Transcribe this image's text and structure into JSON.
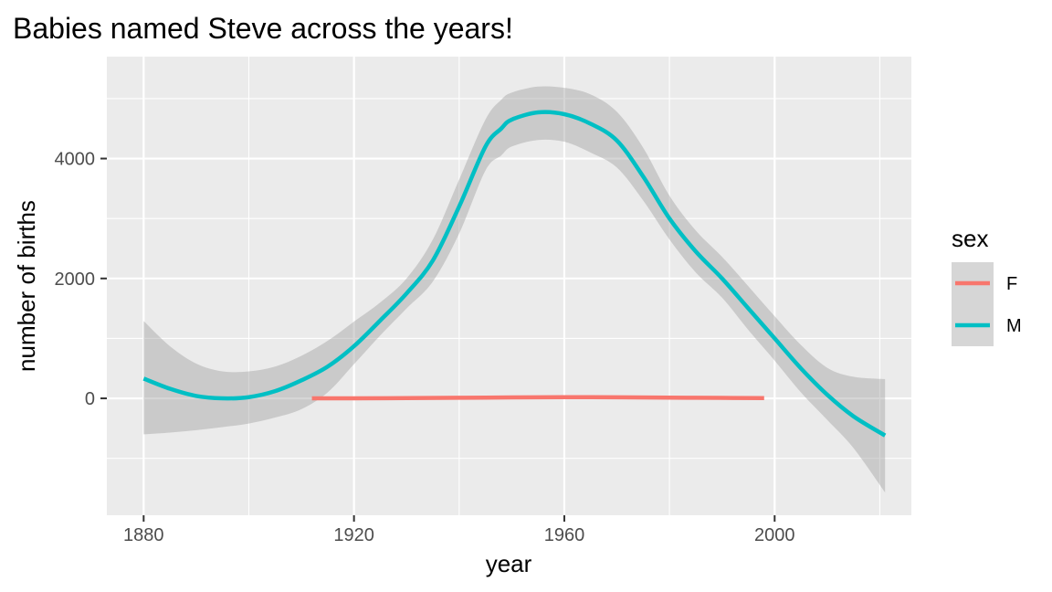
{
  "chart_data": {
    "type": "line",
    "title": "Babies named Steve across the years!",
    "xlabel": "year",
    "ylabel": "number of births",
    "xlim": [
      1873,
      2026
    ],
    "ylim": [
      -1950,
      5700
    ],
    "x_ticks": [
      1880,
      1920,
      1960,
      2000
    ],
    "y_ticks": [
      0,
      2000,
      4000
    ],
    "x_tick_labels": [
      "1880",
      "1920",
      "1960",
      "2000"
    ],
    "y_tick_labels": [
      "0",
      "2000",
      "4000"
    ],
    "grid": true,
    "legend": {
      "title": "sex",
      "placement": "right"
    },
    "series": [
      {
        "name": "F",
        "color": "#F8766D",
        "x": [
          1912,
          1920,
          1930,
          1940,
          1950,
          1960,
          1970,
          1980,
          1990,
          1998
        ],
        "y": [
          0,
          0,
          5,
          10,
          15,
          20,
          18,
          12,
          8,
          5
        ],
        "ci_lower": [
          0,
          0,
          5,
          10,
          15,
          20,
          18,
          12,
          8,
          5
        ],
        "ci_upper": [
          0,
          0,
          5,
          10,
          15,
          20,
          18,
          12,
          8,
          5
        ]
      },
      {
        "name": "M",
        "color": "#00BFC4",
        "x": [
          1880,
          1885,
          1890,
          1895,
          1900,
          1905,
          1910,
          1915,
          1920,
          1925,
          1930,
          1935,
          1940,
          1945,
          1948,
          1950,
          1955,
          1960,
          1965,
          1970,
          1975,
          1980,
          1985,
          1990,
          1995,
          2000,
          2005,
          2010,
          2015,
          2021
        ],
        "y": [
          330,
          160,
          40,
          0,
          20,
          120,
          300,
          530,
          870,
          1300,
          1750,
          2300,
          3200,
          4200,
          4500,
          4650,
          4770,
          4740,
          4580,
          4300,
          3700,
          3000,
          2450,
          2000,
          1500,
          1000,
          500,
          60,
          -300,
          -620
        ],
        "ci_lower": [
          -600,
          -570,
          -530,
          -480,
          -420,
          -320,
          -180,
          100,
          570,
          1050,
          1500,
          1950,
          2750,
          3800,
          4050,
          4200,
          4310,
          4280,
          4100,
          3850,
          3300,
          2650,
          2100,
          1680,
          1140,
          630,
          100,
          -360,
          -830,
          -1570
        ],
        "ci_upper": [
          1290,
          870,
          580,
          450,
          450,
          530,
          710,
          960,
          1280,
          1600,
          2000,
          2650,
          3650,
          4650,
          4980,
          5100,
          5200,
          5180,
          5070,
          4780,
          4180,
          3380,
          2800,
          2360,
          1870,
          1370,
          890,
          510,
          360,
          320
        ]
      }
    ]
  }
}
